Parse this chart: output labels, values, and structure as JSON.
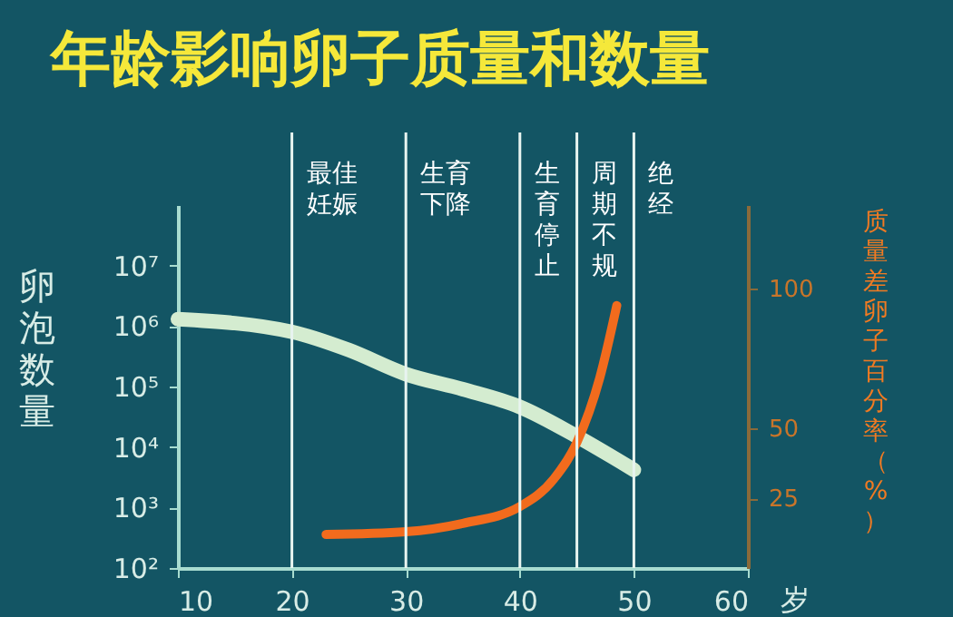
{
  "chart_data": {
    "type": "line",
    "title": "年龄影响卵子质量和数量",
    "xlabel": "岁",
    "ylabel": "卵泡数量",
    "y2label": "质量差卵子百分率（%）",
    "xlim": [
      10,
      60
    ],
    "xticks": [
      10,
      20,
      30,
      40,
      50,
      60
    ],
    "ylim": [
      100,
      100000000
    ],
    "yticks": [
      {
        "value": 100,
        "label": "10²"
      },
      {
        "value": 1000,
        "label": "10³"
      },
      {
        "value": 10000,
        "label": "10⁴"
      },
      {
        "value": 100000,
        "label": "10⁵"
      },
      {
        "value": 1000000,
        "label": "10⁶"
      },
      {
        "value": 10000000,
        "label": "10⁷"
      }
    ],
    "y2lim": [
      0,
      130
    ],
    "y2ticks": [
      25,
      50,
      100
    ],
    "log": "y",
    "grid": false,
    "marker": "none",
    "line_style": "solid",
    "series": [
      {
        "color": "#d4ecd0",
        "x": [
          10,
          20,
          25,
          30,
          35,
          40,
          45,
          50
        ],
        "values": [
          1300000,
          800000,
          400000,
          160000,
          90000,
          46000,
          15000,
          4200
        ]
      },
      {
        "color": "#f26b1d",
        "axis": "y2",
        "x": [
          23,
          30,
          35,
          40,
          43,
          45,
          47,
          48.5
        ],
        "values": [
          12,
          13,
          16,
          22,
          32,
          45,
          68,
          94
        ]
      }
    ],
    "ref_lines": [
      {
        "axis": "x",
        "value": 20,
        "label": "最佳妊娠",
        "color": "#e8f4f0"
      },
      {
        "axis": "x",
        "value": 30,
        "label": "生育下降",
        "color": "#e8f4f0"
      },
      {
        "axis": "x",
        "value": 40,
        "label": "生育停止",
        "color": "#e8f4f0"
      },
      {
        "axis": "x",
        "value": 45,
        "label": "周期不规",
        "color": "#e8f4f0"
      },
      {
        "axis": "x",
        "value": 50,
        "label": "绝经",
        "color": "#e8f4f0"
      }
    ]
  }
}
